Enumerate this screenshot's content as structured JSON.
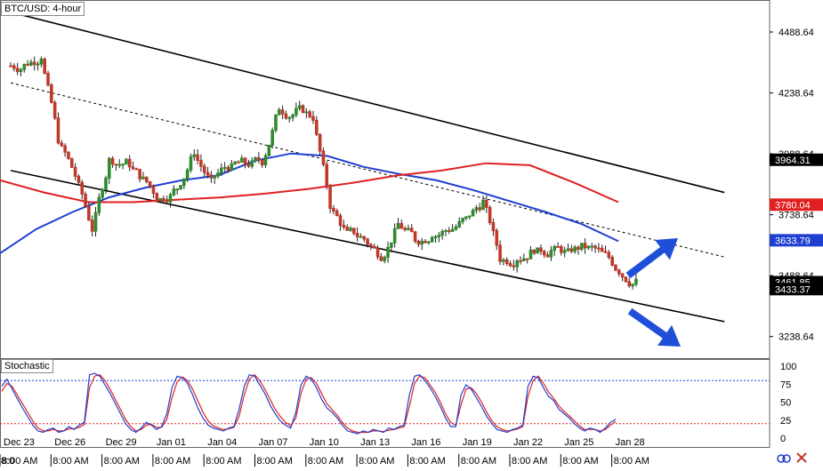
{
  "header": {
    "title": "BTC/USD: 4-hour"
  },
  "oscillator": {
    "title": "Stochastic"
  },
  "colors": {
    "candle_up": "#2e8b2e",
    "candle_down": "#c0392b",
    "sma_fast": "#1f3fd0",
    "sma_slow": "#e02020",
    "stoch_k": "#1f3fd0",
    "stoch_d": "#e02020",
    "channel": "#000000",
    "arrow": "#1f4fd8"
  },
  "chart_data": [
    {
      "type": "candlestick",
      "title": "BTC/USD: 4-hour",
      "ylim": [
        3150,
        4620
      ],
      "y_ticks": [
        4488.64,
        4238.64,
        3988.64,
        3738.64,
        3488.64,
        3238.64
      ],
      "x_date_labels": [
        "Dec 23",
        "Dec 26",
        "Dec 29",
        "Jan 01",
        "Jan 04",
        "Jan 07",
        "Jan 10",
        "Jan 13",
        "Jan 16",
        "Jan 19",
        "Jan 22",
        "Jan 25",
        "Jan 28"
      ],
      "x_time_labels": [
        "8:00 AM",
        "8:00 AM",
        "8:00 AM",
        "8:00 AM",
        "8:00 AM",
        "8:00 AM",
        "8:00 AM",
        "8:00 AM",
        "8:00 AM",
        "8:00 AM",
        "8:00 AM",
        "8:00 AM",
        "8:00 AM"
      ],
      "x_start_label": "8:0",
      "price_labels": [
        {
          "value": "3964.31",
          "kind": "resistance"
        },
        {
          "value": "3780.04",
          "kind": "sma_slow"
        },
        {
          "value": "3633.79",
          "kind": "sma_fast"
        },
        {
          "value": "3461.85",
          "kind": "last_price"
        },
        {
          "value": "3433.37",
          "kind": "support"
        }
      ],
      "key_prices": [
        {
          "date": "Dec 23",
          "close": 4350
        },
        {
          "date": "Dec 24",
          "close": 4390
        },
        {
          "date": "Dec 25",
          "close": 4050
        },
        {
          "date": "Dec 26",
          "close": 3900
        },
        {
          "date": "Dec 27",
          "close": 3680
        },
        {
          "date": "Dec 28",
          "close": 3960
        },
        {
          "date": "Dec 29",
          "close": 3950
        },
        {
          "date": "Dec 30",
          "close": 3880
        },
        {
          "date": "Dec 31",
          "close": 3800
        },
        {
          "date": "Jan 01",
          "close": 3850
        },
        {
          "date": "Jan 02",
          "close": 4000
        },
        {
          "date": "Jan 03",
          "close": 3870
        },
        {
          "date": "Jan 04",
          "close": 3940
        },
        {
          "date": "Jan 05",
          "close": 3950
        },
        {
          "date": "Jan 06",
          "close": 3960
        },
        {
          "date": "Jan 07",
          "close": 4180
        },
        {
          "date": "Jan 08",
          "close": 4160
        },
        {
          "date": "Jan 09",
          "close": 4140
        },
        {
          "date": "Jan 10",
          "close": 3780
        },
        {
          "date": "Jan 11",
          "close": 3660
        },
        {
          "date": "Jan 12",
          "close": 3640
        },
        {
          "date": "Jan 13",
          "close": 3570
        },
        {
          "date": "Jan 14",
          "close": 3700
        },
        {
          "date": "Jan 15",
          "close": 3640
        },
        {
          "date": "Jan 16",
          "close": 3660
        },
        {
          "date": "Jan 17",
          "close": 3680
        },
        {
          "date": "Jan 18",
          "close": 3720
        },
        {
          "date": "Jan 19",
          "close": 3790
        },
        {
          "date": "Jan 20",
          "close": 3560
        },
        {
          "date": "Jan 21",
          "close": 3560
        },
        {
          "date": "Jan 22",
          "close": 3600
        },
        {
          "date": "Jan 23",
          "close": 3590
        },
        {
          "date": "Jan 24",
          "close": 3580
        },
        {
          "date": "Jan 25",
          "close": 3610
        },
        {
          "date": "Jan 26",
          "close": 3580
        },
        {
          "date": "Jan 27",
          "close": 3510
        },
        {
          "date": "Jan 28",
          "close": 3460
        }
      ],
      "channel": {
        "upper": [
          {
            "date": "Dec 23",
            "price": 4570
          },
          {
            "date": "Feb 03",
            "price": 3830
          }
        ],
        "middle": [
          {
            "date": "Dec 23",
            "price": 4280
          },
          {
            "date": "Feb 03",
            "price": 3565
          }
        ],
        "lower": [
          {
            "date": "Dec 23",
            "price": 3920
          },
          {
            "date": "Feb 03",
            "price": 3300
          }
        ]
      },
      "series": [
        {
          "kind": "sma_fast",
          "points": [
            3580,
            3680,
            3750,
            3810,
            3850,
            3880,
            3900,
            3960,
            3990,
            3980,
            3935,
            3905,
            3880,
            3840,
            3795,
            3750,
            3700,
            3630
          ]
        },
        {
          "kind": "sma_slow",
          "points": [
            3880,
            3830,
            3790,
            3790,
            3800,
            3810,
            3825,
            3845,
            3870,
            3900,
            3920,
            3950,
            3942,
            3870,
            3790
          ]
        }
      ],
      "annotations": [
        {
          "type": "arrow",
          "direction": "up"
        },
        {
          "type": "arrow",
          "direction": "down"
        }
      ]
    },
    {
      "type": "line",
      "title": "Stochastic",
      "ylim": [
        0,
        100
      ],
      "y_ticks": [
        100,
        75,
        50,
        25,
        0
      ],
      "levels": [
        80,
        20
      ],
      "k_values": [
        72,
        82,
        68,
        55,
        42,
        30,
        18,
        10,
        8,
        12,
        14,
        8,
        10,
        16,
        12,
        18,
        22,
        88,
        90,
        86,
        74,
        62,
        48,
        34,
        20,
        12,
        8,
        14,
        22,
        18,
        12,
        16,
        34,
        70,
        86,
        84,
        76,
        60,
        42,
        28,
        18,
        14,
        12,
        10,
        14,
        16,
        40,
        72,
        88,
        86,
        74,
        62,
        46,
        34,
        24,
        18,
        14,
        36,
        74,
        86,
        82,
        70,
        54,
        42,
        36,
        28,
        18,
        10,
        8,
        6,
        10,
        8,
        12,
        10,
        8,
        14,
        12,
        16,
        18,
        60,
        86,
        88,
        80,
        70,
        58,
        44,
        28,
        16,
        16,
        60,
        74,
        68,
        56,
        44,
        30,
        20,
        12,
        10,
        8,
        12,
        14,
        18,
        72,
        86,
        84,
        70,
        58,
        52,
        40,
        34,
        28,
        20,
        14,
        10,
        14,
        12,
        8,
        14,
        22,
        26
      ],
      "d_values": [
        65,
        76,
        72,
        60,
        48,
        36,
        24,
        14,
        10,
        10,
        12,
        10,
        10,
        13,
        13,
        15,
        19,
        70,
        86,
        88,
        80,
        68,
        54,
        40,
        26,
        16,
        10,
        12,
        18,
        19,
        15,
        15,
        26,
        56,
        78,
        85,
        80,
        68,
        52,
        36,
        24,
        17,
        14,
        12,
        13,
        15,
        30,
        60,
        82,
        88,
        80,
        68,
        54,
        40,
        30,
        22,
        17,
        28,
        62,
        82,
        84,
        76,
        62,
        48,
        40,
        32,
        22,
        14,
        10,
        8,
        8,
        8,
        10,
        10,
        9,
        11,
        12,
        14,
        16,
        44,
        76,
        86,
        84,
        74,
        64,
        50,
        34,
        22,
        18,
        46,
        68,
        70,
        62,
        50,
        36,
        24,
        16,
        12,
        10,
        11,
        13,
        16,
        58,
        80,
        86,
        76,
        64,
        55,
        45,
        37,
        31,
        24,
        17,
        12,
        12,
        12,
        10,
        12,
        18,
        23
      ]
    }
  ]
}
